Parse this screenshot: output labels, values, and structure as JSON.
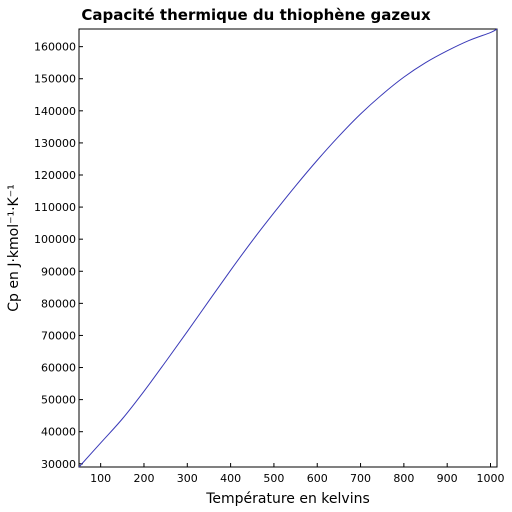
{
  "chart_data": {
    "type": "line",
    "title": "Capacité thermique du thiophène gazeux",
    "xlabel": "Température en kelvins",
    "ylabel": "Cp en J·kmol⁻¹·K⁻¹",
    "xlim": [
      50,
      1015
    ],
    "ylim": [
      29000,
      165500
    ],
    "xticks": [
      100,
      200,
      300,
      400,
      500,
      600,
      700,
      800,
      900,
      1000
    ],
    "yticks": [
      30000,
      40000,
      50000,
      60000,
      70000,
      80000,
      90000,
      100000,
      110000,
      120000,
      130000,
      140000,
      150000,
      160000
    ],
    "grid": false,
    "line_color": "#3a3ab8",
    "series": [
      {
        "x": [
          50,
          100,
          150,
          200,
          250,
          300,
          350,
          400,
          450,
          500,
          550,
          600,
          650,
          700,
          750,
          800,
          850,
          900,
          950,
          1000,
          1015
        ],
        "values": [
          29000,
          36500,
          44000,
          52600,
          61800,
          71200,
          80800,
          90300,
          99500,
          108200,
          116600,
          124600,
          132100,
          139000,
          145100,
          150500,
          155000,
          158700,
          161900,
          164400,
          165500
        ]
      }
    ]
  }
}
